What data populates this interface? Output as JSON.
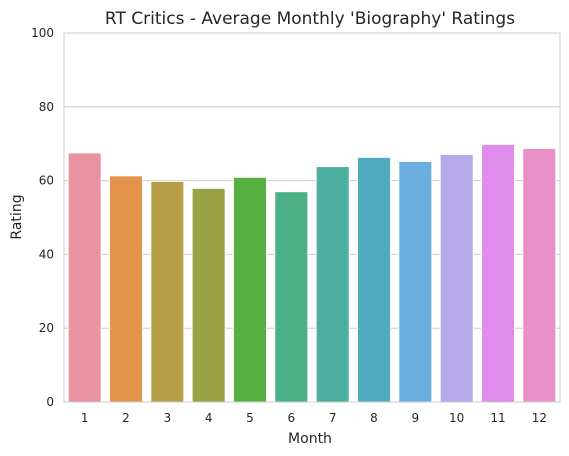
{
  "chart_data": {
    "type": "bar",
    "title": "RT Critics - Average Monthly 'Biography' Ratings",
    "xlabel": "Month",
    "ylabel": "Rating",
    "ylim": [
      0,
      100
    ],
    "yticks": [
      "0",
      "20",
      "40",
      "60",
      "80",
      "100"
    ],
    "grid": "horizontal",
    "categories": [
      "1",
      "2",
      "3",
      "4",
      "5",
      "6",
      "7",
      "8",
      "9",
      "10",
      "11",
      "12"
    ],
    "values": [
      67.5,
      61.3,
      59.8,
      57.9,
      60.9,
      57.0,
      63.8,
      66.3,
      65.2,
      67.1,
      69.8,
      68.7
    ],
    "colors": [
      "#ea93a0",
      "#e3934c",
      "#b89e47",
      "#99a244",
      "#58b042",
      "#4bb087",
      "#4cae9e",
      "#4fabbd",
      "#6baedf",
      "#b5a9ec",
      "#df8cec",
      "#ea90c8"
    ]
  }
}
